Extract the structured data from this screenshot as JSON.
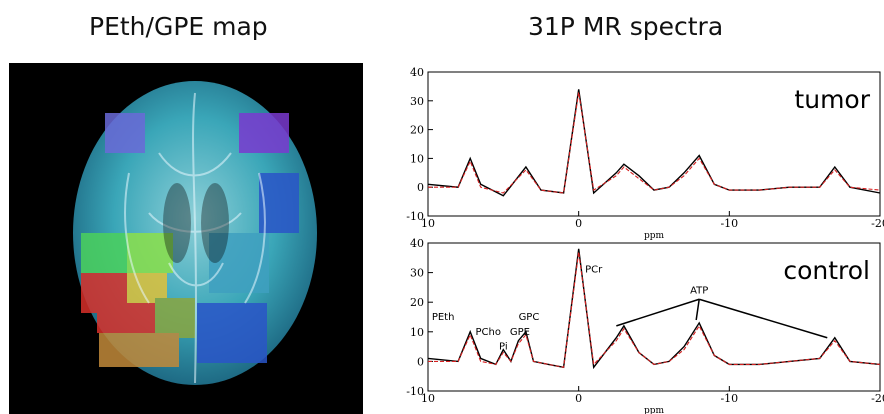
{
  "left_panel": {
    "title": "PEth/GPE map",
    "colors": {
      "background": "#000000",
      "map_base": "#3aa6b8",
      "high": "#d9302a",
      "mid": "#e0c23a",
      "green": "#4bd15c",
      "blue": "#2a55c8",
      "purple": "#7a3ad0"
    }
  },
  "right_panel": {
    "title": "31P MR spectra"
  },
  "chart_data": [
    {
      "type": "line",
      "label": "tumor",
      "xlabel": "ppm",
      "xlim": [
        10,
        -20
      ],
      "ylim": [
        -10,
        40
      ],
      "xticks": [
        10,
        0,
        -10,
        -20
      ],
      "yticks": [
        -10,
        0,
        10,
        20,
        30,
        40
      ],
      "series": [
        {
          "color": "#000000",
          "x": [
            10,
            8,
            7.2,
            6.5,
            5,
            3.5,
            2.5,
            1,
            0,
            -1,
            -2.5,
            -3,
            -4,
            -5,
            -6,
            -7,
            -8,
            -9,
            -10,
            -12,
            -14,
            -16,
            -17,
            -18,
            -20
          ],
          "y": [
            1,
            0,
            10,
            1,
            -3,
            7,
            -1,
            -2,
            34,
            -2,
            5,
            8,
            4,
            -1,
            0,
            5,
            11,
            1,
            -1,
            -1,
            0,
            0,
            7,
            0,
            -2
          ]
        },
        {
          "color": "#d62020",
          "x": [
            10,
            8,
            7.2,
            6.5,
            5,
            3.5,
            2.5,
            1,
            0,
            -1,
            -2.5,
            -3,
            -4,
            -5,
            -6,
            -7,
            -8,
            -9,
            -10,
            -12,
            -14,
            -16,
            -17,
            -18,
            -20
          ],
          "y": [
            0,
            0,
            9,
            0,
            -2,
            6,
            -1,
            -2,
            33,
            -1,
            4,
            7,
            3,
            -1,
            0,
            4,
            10,
            1,
            -1,
            -1,
            0,
            0,
            6,
            0,
            -1
          ]
        }
      ]
    },
    {
      "type": "line",
      "label": "control",
      "xlabel": "ppm",
      "xlim": [
        10,
        -20
      ],
      "ylim": [
        -10,
        40
      ],
      "xticks": [
        10,
        0,
        -10,
        -20
      ],
      "yticks": [
        -10,
        0,
        10,
        20,
        30,
        40
      ],
      "series": [
        {
          "color": "#000000",
          "x": [
            10,
            8,
            7.2,
            6.5,
            5.5,
            5,
            4.5,
            4,
            3.5,
            3,
            2,
            1,
            0,
            -1,
            -2.5,
            -3,
            -4,
            -5,
            -6,
            -7,
            -8,
            -9,
            -10,
            -12,
            -14,
            -16,
            -17,
            -18,
            -20
          ],
          "y": [
            1,
            0,
            10,
            1,
            -1,
            4,
            0,
            7,
            10,
            0,
            -1,
            -2,
            38,
            -2,
            8,
            12,
            3,
            -1,
            0,
            5,
            13,
            2,
            -1,
            -1,
            0,
            1,
            8,
            0,
            -1
          ]
        },
        {
          "color": "#d62020",
          "x": [
            10,
            8,
            7.2,
            6.5,
            5.5,
            5,
            4.5,
            4,
            3.5,
            3,
            2,
            1,
            0,
            -1,
            -2.5,
            -3,
            -4,
            -5,
            -6,
            -7,
            -8,
            -9,
            -10,
            -12,
            -14,
            -16,
            -17,
            -18,
            -20
          ],
          "y": [
            0,
            0,
            9,
            0,
            -1,
            3,
            0,
            6,
            9,
            0,
            -1,
            -2,
            37,
            -1,
            7,
            11,
            3,
            -1,
            0,
            4,
            12,
            2,
            -1,
            -1,
            0,
            1,
            7,
            0,
            -1
          ]
        }
      ],
      "annotations": [
        "PEth",
        "PCho",
        "Pi",
        "GPE",
        "GPC",
        "PCr",
        "ATP"
      ]
    }
  ]
}
